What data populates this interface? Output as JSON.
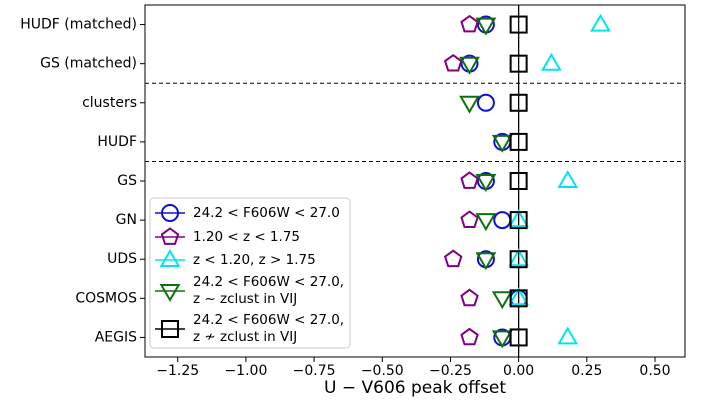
{
  "chart_data": {
    "type": "dot",
    "xlabel": "U − V606 peak offset",
    "categories": [
      "HUDF (matched)",
      "GS (matched)",
      "clusters",
      "HUDF",
      "GS",
      "GN",
      "UDS",
      "COSMOS",
      "AEGIS"
    ],
    "series": [
      {
        "name": "24.2 < F606W < 27.0",
        "color": "#1010d0",
        "marker": "circle",
        "values": [
          -0.12,
          -0.18,
          -0.12,
          -0.06,
          -0.12,
          -0.06,
          -0.12,
          0.0,
          -0.06
        ]
      },
      {
        "name": "1.20 < z < 1.75",
        "color": "#800080",
        "marker": "pentagon",
        "values": [
          -0.18,
          -0.24,
          null,
          null,
          -0.18,
          -0.18,
          -0.24,
          -0.18,
          -0.18
        ]
      },
      {
        "name": "z < 1.20, z > 1.75",
        "color": "#00e5ee",
        "marker": "triangle-up",
        "values": [
          0.3,
          0.12,
          null,
          null,
          0.18,
          0.0,
          0.0,
          0.0,
          0.18
        ]
      },
      {
        "name": "24.2 < F606W < 27.0,\nz ~ zclust in VIJ",
        "color": "#107010",
        "marker": "triangle-down",
        "values": [
          -0.12,
          -0.18,
          -0.18,
          -0.06,
          -0.12,
          -0.12,
          -0.12,
          -0.06,
          -0.06
        ]
      },
      {
        "name": "24.2 < F606W < 27.0,\nz ≁ zclust in VIJ",
        "color": "#000000",
        "marker": "square",
        "values": [
          0.0,
          0.0,
          0.0,
          0.0,
          0.0,
          0.0,
          0.0,
          0.0,
          0.0
        ]
      }
    ],
    "xlim": [
      -1.37,
      0.61
    ],
    "xticks": [
      {
        "value": -1.25,
        "label": "−1.25"
      },
      {
        "value": -1.0,
        "label": "−1.00"
      },
      {
        "value": -0.75,
        "label": "−0.75"
      },
      {
        "value": -0.5,
        "label": "−0.50"
      },
      {
        "value": -0.25,
        "label": "−0.25"
      },
      {
        "value": 0.0,
        "label": "0.00"
      },
      {
        "value": 0.25,
        "label": "0.25"
      },
      {
        "value": 0.5,
        "label": "0.50"
      }
    ],
    "reference_x": 0.0,
    "separators_after": [
      1,
      3
    ],
    "legend": "lower left"
  }
}
